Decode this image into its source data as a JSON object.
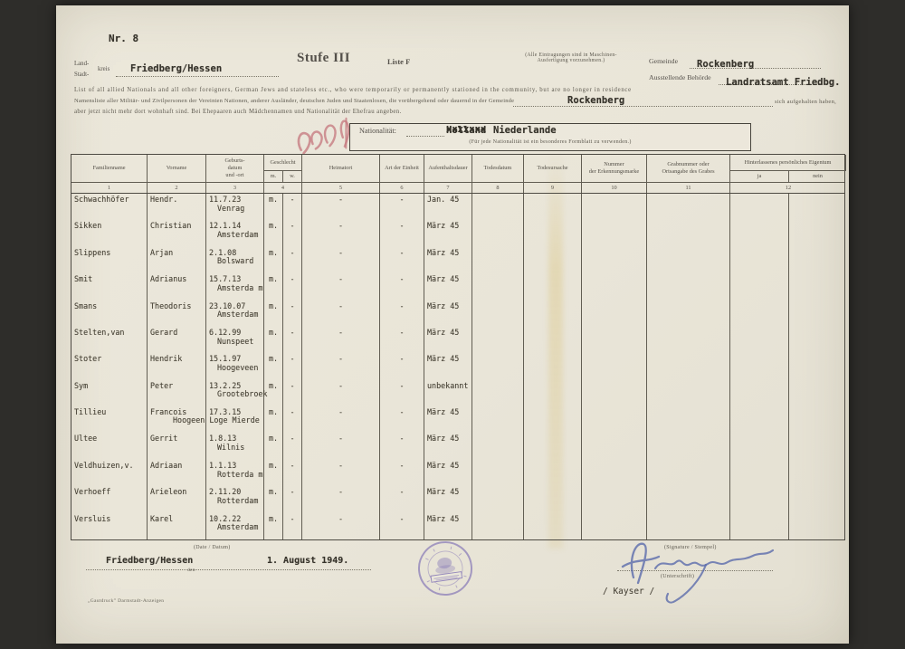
{
  "document": {
    "nr": "Nr. 8",
    "stufe": "Stufe III",
    "liste": "Liste F",
    "machine_note": "(Alle Eintragungen sind in Maschinen-\nAusfertigung vorzunehmen.)",
    "kreis_label_top": "Land-",
    "kreis_label_bottom": "Stadt-",
    "kreis_suffix": "kreis",
    "kreis_value": "Friedberg/Hessen",
    "gemeinde_label": "Gemeinde",
    "gemeinde_value": "Rockenberg",
    "behoerde_label": "Ausstellende Behörde",
    "behoerde_value": "Landratsamt Friedbg.",
    "intro_en": "List of all allied Nationals and all other foreigners, German Jews and stateless etc., who were temporarily or permanently stationed in the community, but are no longer in residence",
    "intro_de": "Namensliste aller Militär- und Zivilpersonen der Vereinten Nationen, anderer Ausländer, deutschen Juden und Staatenlosen, die vorübergehend oder dauernd in der Gemeinde",
    "intro_de_value": "Rockenberg",
    "intro_de_suffix": "sich aufgehalten haben,",
    "intro_line3": "aber jetzt nicht mehr dort wohnhaft sind. Bei Ehepaaren auch Mädchennamen und Nationalität der Ehefrau angeben."
  },
  "nationality": {
    "label": "Nationalität:",
    "crossed_out": "Holland",
    "overstrike": "xxxxxxx",
    "value": "Niederlande",
    "note": "(Für jede Nationalität ist ein besonderes Formblatt zu verwenden.)"
  },
  "table": {
    "columns": [
      "Familienname",
      "Vorname",
      "Geburts-\ndatum\nund -ort",
      "Geschlecht",
      "Heimatort",
      "Art der Einheit",
      "Aufenthaltsdauer",
      "Todesdatum",
      "Todesursache",
      "Nummer\nder Erkennungsmarke",
      "Grabnummer oder\nOrtsangabe des Grabes",
      "Hinterlassenes persönliches Eigentum"
    ],
    "sub": {
      "m": "m.",
      "w": "w.",
      "ja": "ja",
      "nein": "nein"
    },
    "numbers": [
      "1",
      "2",
      "3",
      "4",
      "5",
      "6",
      "7",
      "8",
      "9",
      "10",
      "11",
      "12"
    ],
    "rows": [
      {
        "fam": "Schwachhöfer",
        "vor": "Hendr.",
        "datum": "11.7.23",
        "ort": "Venrag",
        "m": "m.",
        "w": "-",
        "heim": "-",
        "einheit": "-",
        "dauer": "Jan. 45"
      },
      {
        "fam": "Sikken",
        "vor": "Christian",
        "datum": "12.1.14",
        "ort": "Amsterdam",
        "m": "m.",
        "w": "-",
        "heim": "-",
        "einheit": "-",
        "dauer": "März 45"
      },
      {
        "fam": "Slippens",
        "vor": "Arjan",
        "datum": "2.1.08",
        "ort": "Bolsward",
        "m": "m.",
        "w": "-",
        "heim": "-",
        "einheit": "-",
        "dauer": "März 45"
      },
      {
        "fam": "Smit",
        "vor": "Adrianus",
        "datum": "15.7.13",
        "ort": "Amsterda m",
        "m": "m.",
        "w": "-",
        "heim": "-",
        "einheit": "-",
        "dauer": "März 45"
      },
      {
        "fam": "Smans",
        "vor": "Theodoris",
        "datum": "23.10.07",
        "ort": "Amsterdam",
        "m": "m.",
        "w": "-",
        "heim": "-",
        "einheit": "-",
        "dauer": "März 45"
      },
      {
        "fam": "Stelten,van",
        "vor": "Gerard",
        "datum": "6.12.99",
        "ort": "Nunspeet",
        "m": "m.",
        "w": "-",
        "heim": "-",
        "einheit": "-",
        "dauer": "März 45"
      },
      {
        "fam": "Stoter",
        "vor": "Hendrik",
        "datum": "15.1.97",
        "ort": "Hoogeveen",
        "m": "m.",
        "w": "-",
        "heim": "-",
        "einheit": "-",
        "dauer": "März 45"
      },
      {
        "fam": "Sym",
        "vor": "Peter",
        "datum": "13.2.25",
        "ort": "Grootebroek",
        "m": "m.",
        "w": "-",
        "heim": "-",
        "einheit": "-",
        "dauer": "unbekannt"
      },
      {
        "fam": "Tillieu",
        "vor": "Francois",
        "datum": "17.3.15",
        "ort": "Hoogeen Loge Mierde",
        "wide": true,
        "m": "m.",
        "w": "-",
        "heim": "-",
        "einheit": "-",
        "dauer": "März 45"
      },
      {
        "fam": "Ultee",
        "vor": "Gerrit",
        "datum": "1.8.13",
        "ort": "Wilnis",
        "m": "m.",
        "w": "-",
        "heim": "-",
        "einheit": "-",
        "dauer": "März 45"
      },
      {
        "fam": "Veldhuizen,v.",
        "vor": "Adriaan",
        "datum": "1.1.13",
        "ort": "Rotterda m",
        "m": "m.",
        "w": "-",
        "heim": "-",
        "einheit": "-",
        "dauer": "März 45"
      },
      {
        "fam": "Verhoeff",
        "vor": "Arieleon",
        "datum": "2.11.20",
        "ort": "Rotterdam",
        "m": "m.",
        "w": "-",
        "heim": "-",
        "einheit": "-",
        "dauer": "März 45"
      },
      {
        "fam": "Versluis",
        "vor": "Karel",
        "datum": "10.2.22",
        "ort": "Amsterdam",
        "m": "m.",
        "w": "-",
        "heim": "-",
        "einheit": "-",
        "dauer": "März 45"
      }
    ]
  },
  "footer": {
    "date_label": "(Date / Datum)",
    "place_value": "Friedberg/Hessen",
    "den_label": "den",
    "date_value": "1. August 1949.",
    "signature_label": "(Signature / Stempel)",
    "unterschrift_label": "(Unterschrift)",
    "signature_typed": "/ Kayser /",
    "imprint": "„Gautdruck” Darmstadt-Anzeigen"
  },
  "colors": {
    "paper": "#e9e5d8",
    "print_ink": "#54504a",
    "typed_ink": "#35322a",
    "stamp_purple": "#7e6fb4",
    "signature_blue": "#5b6cab",
    "red_pencil": "#c4767c",
    "background": "#2e2d2a"
  }
}
